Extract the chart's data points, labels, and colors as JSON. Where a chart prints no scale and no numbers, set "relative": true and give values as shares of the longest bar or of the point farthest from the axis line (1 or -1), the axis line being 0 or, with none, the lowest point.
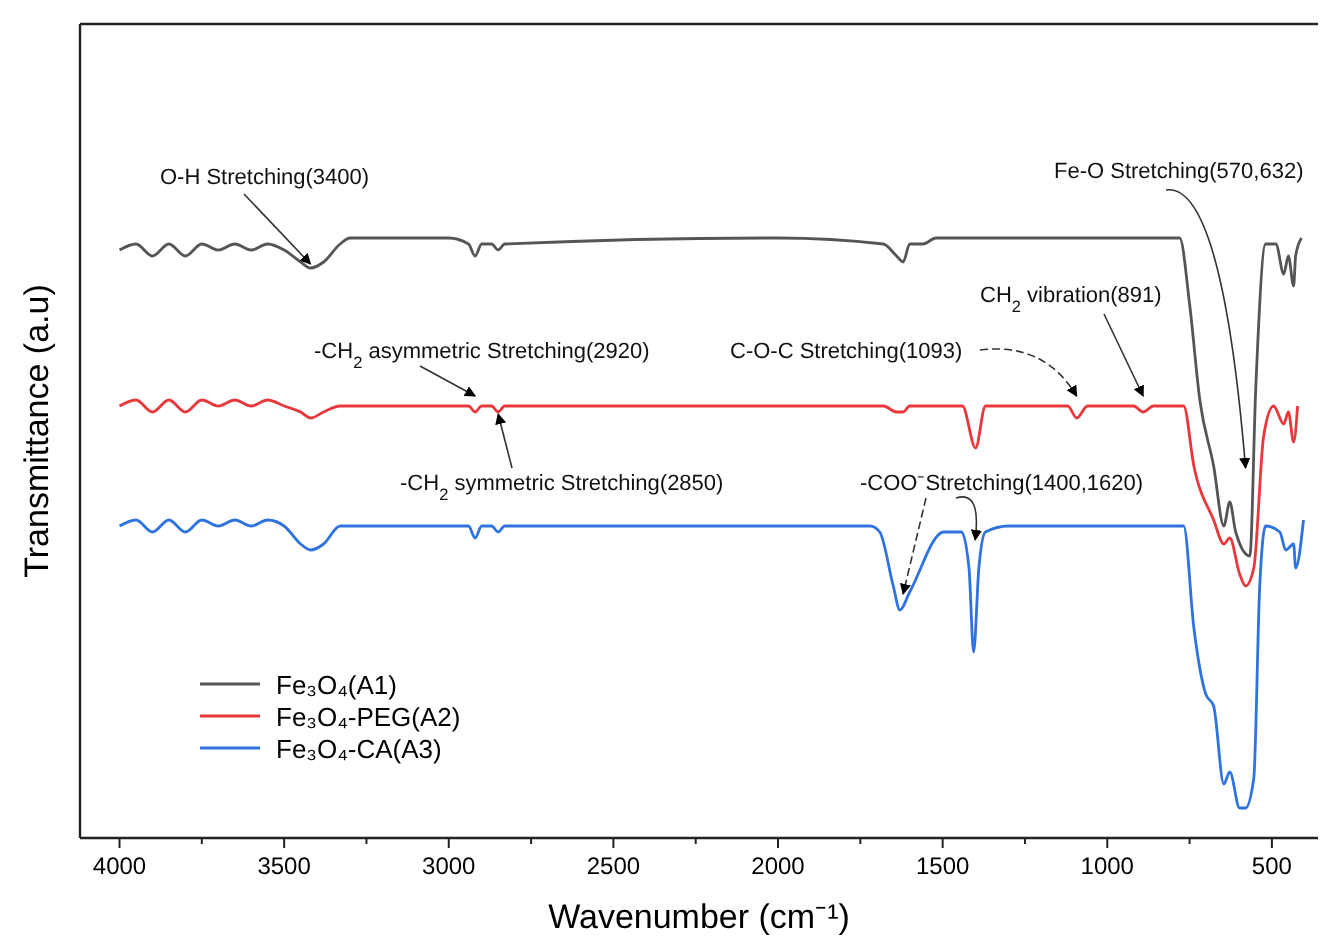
{
  "chart_data": {
    "type": "line",
    "relative": true,
    "xlabel": "Wavenumber (cm⁻¹)",
    "ylabel": "Transmittance (a.u)",
    "xlim": [
      4120,
      360
    ],
    "xticks": [
      4000,
      {
        "value": 3750,
        "label": null
      },
      3500,
      {
        "value": 3250,
        "label": null
      },
      3000,
      {
        "value": 2750,
        "label": null
      },
      2500,
      {
        "value": 2250,
        "label": null
      },
      2000,
      {
        "value": 1750,
        "label": null
      },
      1500,
      {
        "value": 1250,
        "label": null
      },
      1000,
      {
        "value": 750,
        "label": null
      },
      500
    ],
    "legend": "bottom left",
    "grid": false,
    "marker": "none",
    "line_style": "solid",
    "series": [
      {
        "name": "Fe₃O₄(A1)",
        "color": "#555555",
        "x": [
          4000,
          3950,
          3900,
          3850,
          3800,
          3750,
          3700,
          3650,
          3600,
          3550,
          3500,
          3450,
          3420,
          3380,
          3330,
          3300,
          3000,
          2940,
          2920,
          2900,
          2870,
          2850,
          2830,
          2000,
          1680,
          1640,
          1620,
          1600,
          1560,
          1520,
          800,
          780,
          750,
          719,
          677,
          646,
          628,
          610,
          567,
          549,
          519,
          488,
          464,
          450,
          434,
          428,
          410
        ],
        "values": [
          0.98,
          0.99,
          0.97,
          0.99,
          0.97,
          0.99,
          0.98,
          0.99,
          0.98,
          0.99,
          0.98,
          0.96,
          0.95,
          0.96,
          0.99,
          1.0,
          1.0,
          0.99,
          0.97,
          0.99,
          0.99,
          0.98,
          0.99,
          1.0,
          0.99,
          0.97,
          0.96,
          0.99,
          0.99,
          1.0,
          1.0,
          1.0,
          0.89,
          0.73,
          0.62,
          0.52,
          0.56,
          0.51,
          0.47,
          0.75,
          0.99,
          0.99,
          0.94,
          0.97,
          0.92,
          0.97,
          1.0
        ]
      },
      {
        "name": "Fe₃O₄-PEG(A2)",
        "color": "#e8383c",
        "x": [
          4000,
          3950,
          3900,
          3850,
          3800,
          3750,
          3700,
          3650,
          3600,
          3550,
          3500,
          3450,
          3420,
          3380,
          3330,
          3000,
          2940,
          2920,
          2900,
          2870,
          2850,
          2830,
          1680,
          1640,
          1620,
          1600,
          1440,
          1400,
          1370,
          1300,
          1120,
          1093,
          1060,
          920,
          891,
          860,
          780,
          768,
          737,
          677,
          646,
          628,
          598,
          580,
          555,
          525,
          495,
          464,
          450,
          434,
          422
        ],
        "values": [
          0.72,
          0.73,
          0.71,
          0.73,
          0.71,
          0.73,
          0.72,
          0.73,
          0.72,
          0.73,
          0.72,
          0.71,
          0.7,
          0.71,
          0.72,
          0.72,
          0.72,
          0.71,
          0.72,
          0.72,
          0.71,
          0.72,
          0.72,
          0.71,
          0.71,
          0.72,
          0.72,
          0.65,
          0.72,
          0.72,
          0.72,
          0.7,
          0.72,
          0.72,
          0.71,
          0.72,
          0.72,
          0.72,
          0.62,
          0.53,
          0.49,
          0.5,
          0.44,
          0.42,
          0.45,
          0.67,
          0.72,
          0.69,
          0.71,
          0.66,
          0.72
        ]
      },
      {
        "name": "Fe₃O₄-CA(A3)",
        "color": "#2f73e0",
        "x": [
          4000,
          3950,
          3900,
          3850,
          3800,
          3750,
          3700,
          3650,
          3600,
          3550,
          3500,
          3450,
          3420,
          3380,
          3330,
          3000,
          2940,
          2920,
          2900,
          2870,
          2850,
          2830,
          1720,
          1691,
          1650,
          1630,
          1600,
          1497,
          1443,
          1420,
          1406,
          1390,
          1370,
          1300,
          1100,
          780,
          768,
          737,
          701,
          677,
          646,
          628,
          598,
          580,
          555,
          537,
          519,
          476,
          458,
          434,
          428,
          404
        ],
        "values": [
          0.52,
          0.53,
          0.51,
          0.53,
          0.51,
          0.53,
          0.52,
          0.53,
          0.52,
          0.53,
          0.52,
          0.49,
          0.48,
          0.49,
          0.52,
          0.52,
          0.52,
          0.5,
          0.52,
          0.52,
          0.51,
          0.52,
          0.52,
          0.51,
          0.42,
          0.38,
          0.41,
          0.51,
          0.51,
          0.45,
          0.31,
          0.45,
          0.51,
          0.52,
          0.52,
          0.52,
          0.52,
          0.35,
          0.24,
          0.22,
          0.09,
          0.11,
          0.05,
          0.05,
          0.1,
          0.42,
          0.52,
          0.51,
          0.48,
          0.49,
          0.45,
          0.53
        ]
      }
    ],
    "annotations": [
      {
        "text": "O-H Stretching(3400)",
        "x": 3420,
        "y": 0.95
      },
      {
        "text": "Fe-O Stretching(570,632)",
        "x": 580,
        "y": 0.61
      },
      {
        "text": "CH$_{2}$ vibration(891)",
        "x": 891,
        "y": 0.73
      },
      {
        "text": "C-O-C Stretching(1093)",
        "x": 1093,
        "y": 0.73
      },
      {
        "text": "-CH$_{2}$ asymmetric Stretching(2920)",
        "x": 2920,
        "y": 0.73
      },
      {
        "text": "-CH$_{2}$ symmetric Stretching(2850)",
        "x": 2850,
        "y": 0.7
      },
      {
        "text": "-COO⁻Stretching(1400,1620)",
        "x": 1620,
        "y": 0.4
      }
    ]
  }
}
